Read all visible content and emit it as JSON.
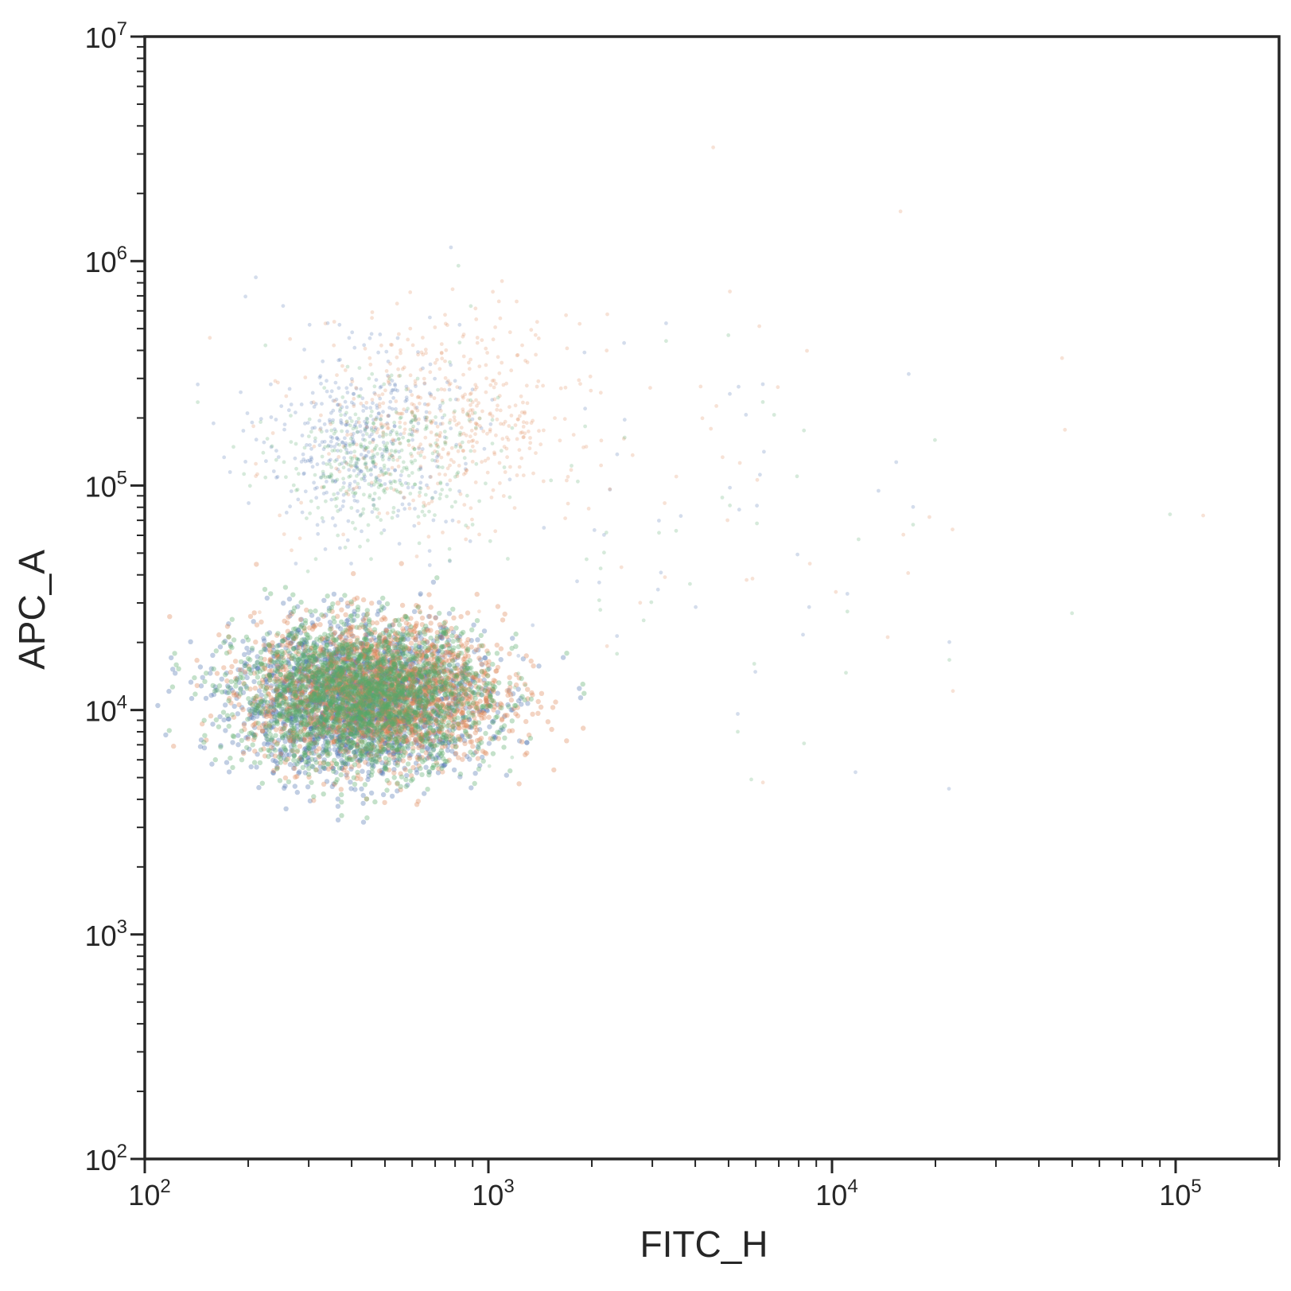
{
  "chart_data": {
    "type": "scatter",
    "title": "",
    "xlabel": "FITC_H",
    "ylabel": "APC_A",
    "xscale": "log",
    "yscale": "log",
    "xlim": [
      100,
      200000
    ],
    "ylim": [
      100,
      10000000
    ],
    "grid": false,
    "legend": "none",
    "x_ticks": [
      {
        "base": "10",
        "exp": "2"
      },
      {
        "base": "10",
        "exp": "3"
      },
      {
        "base": "10",
        "exp": "4"
      },
      {
        "base": "10",
        "exp": "5"
      }
    ],
    "y_ticks": [
      {
        "base": "10",
        "exp": "2"
      },
      {
        "base": "10",
        "exp": "3"
      },
      {
        "base": "10",
        "exp": "4"
      },
      {
        "base": "10",
        "exp": "5"
      },
      {
        "base": "10",
        "exp": "6"
      },
      {
        "base": "10",
        "exp": "7"
      }
    ],
    "point_alpha": 0.12,
    "series": [
      {
        "color": "#4c72b0",
        "clusters": [
          {
            "x_center": 420,
            "y_center": 11000,
            "x_spread_decades": 0.18,
            "y_spread_decades": 0.16,
            "weight": 0.82
          },
          {
            "x_center": 420,
            "y_center": 160000,
            "x_spread_decades": 0.14,
            "y_spread_decades": 0.2,
            "weight": 0.16
          },
          {
            "x_center": 3000,
            "y_center": 60000,
            "x_spread_decades": 0.55,
            "y_spread_decades": 0.5,
            "weight": 0.02
          }
        ]
      },
      {
        "color": "#dd8452",
        "clusters": [
          {
            "x_center": 480,
            "y_center": 12000,
            "x_spread_decades": 0.18,
            "y_spread_decades": 0.16,
            "weight": 0.8
          },
          {
            "x_center": 750,
            "y_center": 200000,
            "x_spread_decades": 0.2,
            "y_spread_decades": 0.22,
            "weight": 0.18
          },
          {
            "x_center": 3500,
            "y_center": 100000,
            "x_spread_decades": 0.6,
            "y_spread_decades": 0.55,
            "weight": 0.02
          }
        ]
      },
      {
        "color": "#55a868",
        "clusters": [
          {
            "x_center": 430,
            "y_center": 11500,
            "x_spread_decades": 0.18,
            "y_spread_decades": 0.16,
            "weight": 0.84
          },
          {
            "x_center": 480,
            "y_center": 130000,
            "x_spread_decades": 0.14,
            "y_spread_decades": 0.16,
            "weight": 0.14
          },
          {
            "x_center": 3000,
            "y_center": 50000,
            "x_spread_decades": 0.55,
            "y_spread_decades": 0.5,
            "weight": 0.02
          }
        ]
      }
    ]
  }
}
